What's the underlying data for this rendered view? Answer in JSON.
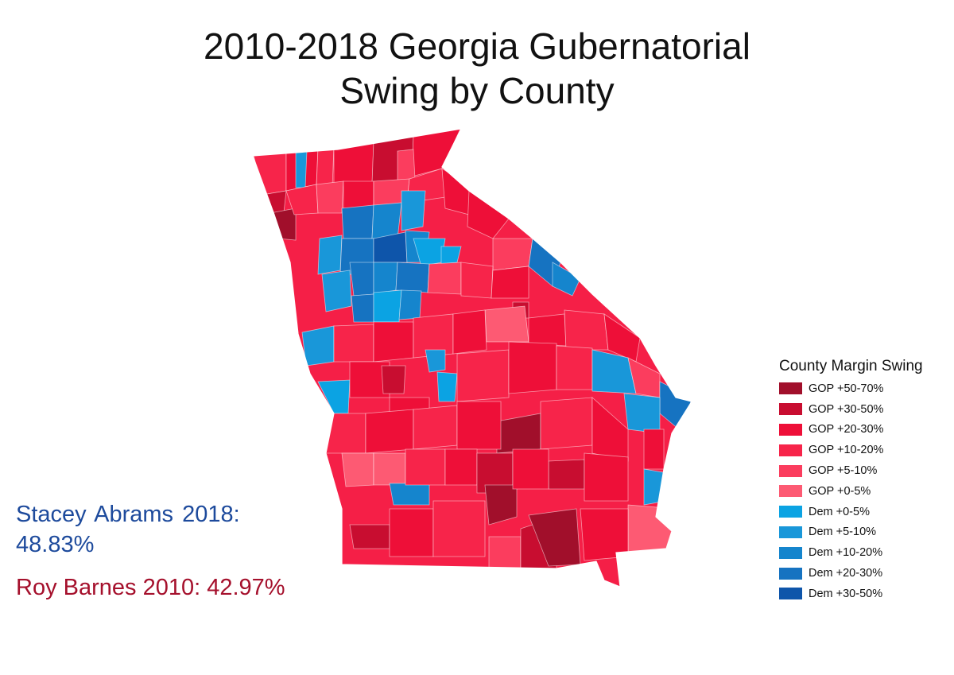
{
  "title": {
    "line1": "2010-2018 Georgia Gubernatorial",
    "line2": "Swing by County"
  },
  "legend": {
    "title": "County Margin Swing",
    "items": [
      {
        "label": "GOP +50-70%",
        "color": "#a10f2b"
      },
      {
        "label": "GOP +30-50%",
        "color": "#c80d30"
      },
      {
        "label": "GOP +20-30%",
        "color": "#ee0f38"
      },
      {
        "label": "GOP +10-20%",
        "color": "#f7244a"
      },
      {
        "label": "GOP +5-10%",
        "color": "#fb3d5e"
      },
      {
        "label": "GOP +0-5%",
        "color": "#fd5a73"
      },
      {
        "label": "Dem +0-5%",
        "color": "#0ba3e3"
      },
      {
        "label": "Dem +5-10%",
        "color": "#1997d9"
      },
      {
        "label": "Dem +10-20%",
        "color": "#1585cd"
      },
      {
        "label": "Dem +20-30%",
        "color": "#1673c1"
      },
      {
        "label": "Dem +30-50%",
        "color": "#0e55aa"
      }
    ]
  },
  "notes": {
    "dem_line1": "Stacey Abrams 2018:",
    "dem_line2": "48.83%",
    "gop": "Roy Barnes 2010: 42.97%"
  },
  "colors": {
    "background": "#ffffff",
    "border": "#ffffff",
    "dem_text": "#1d4a9c",
    "gop_text": "#a5102c"
  }
}
